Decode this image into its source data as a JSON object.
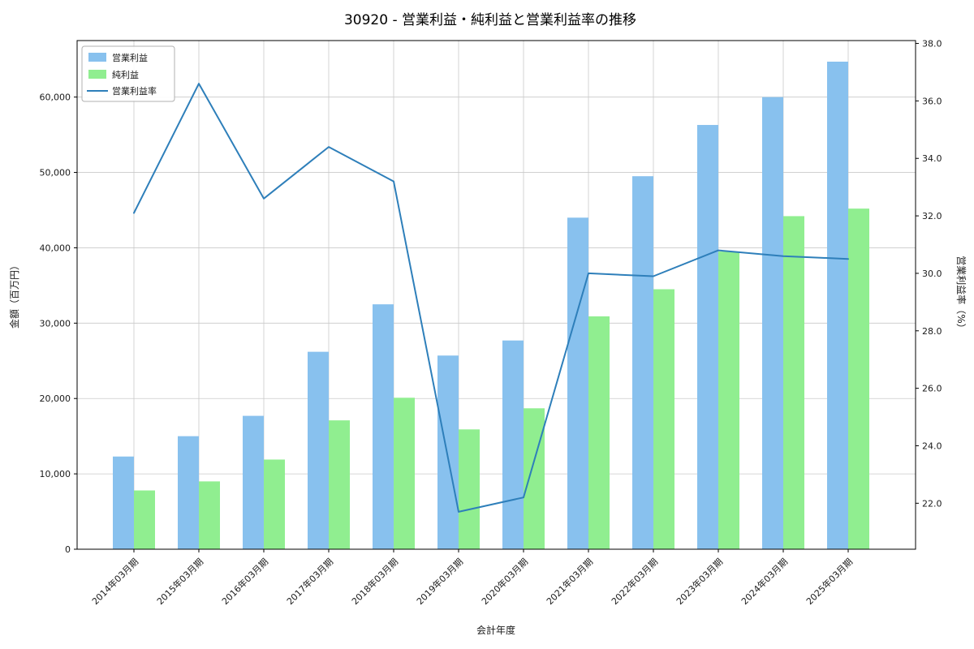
{
  "title": "30920 - 営業利益・純利益と営業利益率の推移",
  "chart_data": {
    "type": "bar",
    "subtype": "grouped-bars-with-line",
    "categories": [
      "2014年03月期",
      "2015年03月期",
      "2016年03月期",
      "2017年03月期",
      "2018年03月期",
      "2019年03月期",
      "2020年03月期",
      "2021年03月期",
      "2022年03月期",
      "2023年03月期",
      "2024年03月期",
      "2025年03月期"
    ],
    "series": [
      {
        "id": "operating-profit",
        "name": "営業利益",
        "type": "bar",
        "axis": "left",
        "color": "#88c1ee",
        "values": [
          12300,
          15000,
          17700,
          26200,
          32500,
          25700,
          27700,
          44000,
          49500,
          56300,
          60000,
          64700
        ]
      },
      {
        "id": "net-profit",
        "name": "純利益",
        "type": "bar",
        "axis": "left",
        "color": "#90ee90",
        "values": [
          7800,
          9000,
          11900,
          17100,
          20100,
          15900,
          18700,
          30900,
          34500,
          39500,
          44200,
          45200
        ]
      },
      {
        "id": "operating-margin",
        "name": "営業利益率",
        "type": "line",
        "axis": "right",
        "color": "#2e7fba",
        "values": [
          32.1,
          36.6,
          32.6,
          34.4,
          33.2,
          21.7,
          22.2,
          30.0,
          29.9,
          30.8,
          30.6,
          30.5
        ]
      }
    ],
    "xlabel": "会計年度",
    "ylabel_left": "金額（百万円）",
    "ylabel_right": "営業利益率（%）",
    "left_ticks": [
      0,
      10000,
      20000,
      30000,
      40000,
      50000,
      60000
    ],
    "right_ticks": [
      22.0,
      24.0,
      26.0,
      28.0,
      30.0,
      32.0,
      34.0,
      36.0,
      38.0
    ],
    "left_ylim": [
      0,
      67500
    ],
    "right_ylim": [
      20.4,
      38.1
    ],
    "grid": true,
    "grid_color": "#c9c9c9",
    "axis_color": "#000000",
    "legend_position": "upper-left"
  }
}
